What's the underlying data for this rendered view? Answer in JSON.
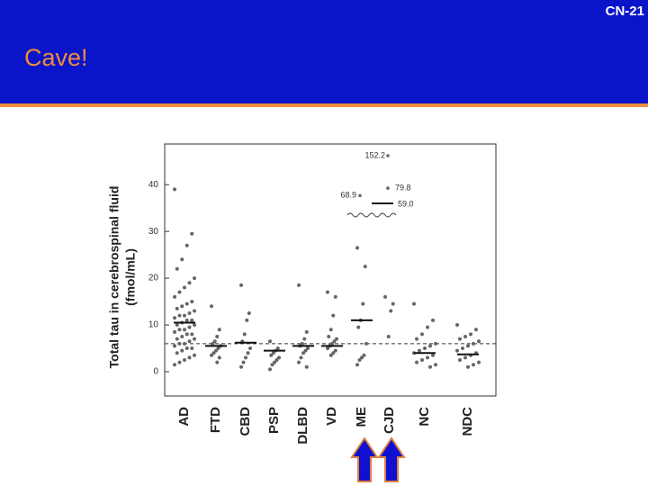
{
  "header": {
    "slide_number": "CN-21",
    "title": "Cave!"
  },
  "chart_data": {
    "type": "strip",
    "y_label": [
      "Total tau in cerebrospinal fluid",
      "(fmol/mL)"
    ],
    "categories": [
      "AD",
      "FTD",
      "CBD",
      "PSP",
      "DLBD",
      "VD",
      "ME",
      "CJD",
      "NC",
      "NDC"
    ],
    "values": [
      [
        39,
        29.5,
        27,
        24,
        22,
        20,
        19,
        18,
        17,
        16,
        15,
        14.5,
        14,
        13.5,
        13,
        12.5,
        12,
        12,
        11.5,
        11,
        11,
        10.5,
        10,
        10,
        9.5,
        9,
        9,
        8.5,
        8,
        8,
        7.5,
        7,
        7,
        6.5,
        6,
        6,
        5.5,
        5,
        5,
        4.5,
        4,
        3.5,
        3,
        2.5,
        2,
        1.5
      ],
      [
        14,
        9,
        7.5,
        6.5,
        6,
        5.5,
        5,
        4.5,
        4,
        3.5,
        3,
        2
      ],
      [
        18.5,
        12.5,
        11,
        8,
        6.5,
        5,
        4,
        3,
        2,
        1
      ],
      [
        6.5,
        5,
        4.5,
        4,
        3.5,
        3,
        2.5,
        2,
        1.5,
        0.5
      ],
      [
        18.5,
        8.5,
        7,
        6,
        5.5,
        5,
        4.5,
        4,
        3,
        2,
        1
      ],
      [
        17,
        16,
        12,
        9,
        7.5,
        7,
        6.5,
        6,
        5.5,
        5,
        4.5,
        4,
        3.5
      ],
      [
        26.5,
        22.5,
        14.5,
        11,
        9.5,
        6,
        3.5,
        3,
        2.5,
        1.5
      ],
      [
        16,
        14.5,
        13,
        7.5
      ],
      [
        14.5,
        11,
        9.5,
        8,
        7,
        6,
        5.5,
        5,
        4.5,
        4,
        3.5,
        3,
        2.5,
        2,
        1.5,
        1
      ],
      [
        10,
        9,
        8,
        7.5,
        7,
        6.5,
        6,
        5.5,
        5,
        4.5,
        4,
        3.5,
        3,
        2.5,
        2,
        1.5,
        1
      ]
    ],
    "medians": [
      10.5,
      5.5,
      6.2,
      4.5,
      5.5,
      5.5,
      11,
      59,
      4,
      3.7
    ],
    "median_value_labels": [
      null,
      null,
      null,
      null,
      null,
      null,
      null,
      "59.0",
      null,
      null
    ],
    "broken_axis_points": [
      {
        "category": "ME",
        "value": 68.9,
        "label": "68.9"
      },
      {
        "category": "CJD",
        "value": 152.2,
        "label": "152.2"
      },
      {
        "category": "CJD",
        "value": 79.8,
        "label": "79.8"
      }
    ],
    "reference_line": 6,
    "color": "#666666",
    "ylim": [
      -5.2,
      48.7
    ],
    "yticks": [
      0,
      10,
      20,
      30,
      40
    ]
  }
}
